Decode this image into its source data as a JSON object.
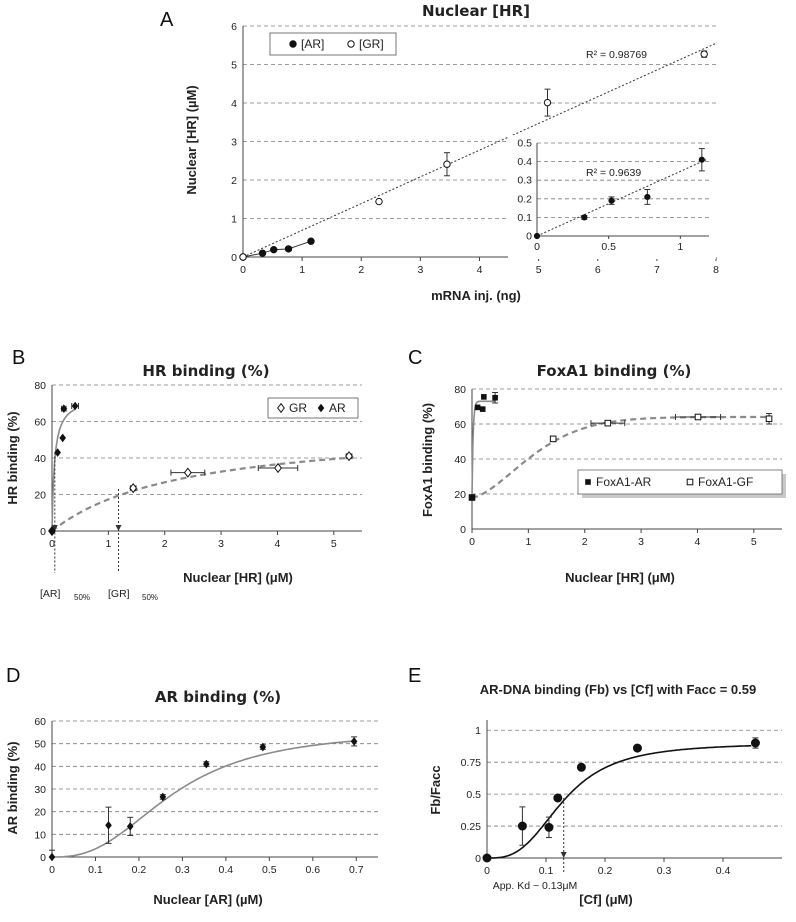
{
  "panels": {
    "A": "A",
    "B": "B",
    "C": "C",
    "D": "D",
    "E": "E"
  },
  "chart_data": [
    {
      "id": "A",
      "type": "scatter",
      "title": "Nuclear [HR]",
      "xlabel": "mRNA inj. (ng)",
      "ylabel": "Nuclear [HR] (µM)",
      "xlim": [
        0,
        8
      ],
      "ylim": [
        0,
        6
      ],
      "xticks": [
        0,
        1,
        2,
        3,
        4,
        5,
        6,
        7,
        8
      ],
      "yticks": [
        0,
        1,
        2,
        3,
        4,
        5,
        6
      ],
      "legend": [
        "[AR]",
        "[GR]"
      ],
      "series": [
        {
          "name": "[AR]",
          "marker": "filled-circle",
          "x": [
            0,
            0.33,
            0.52,
            0.77,
            1.15
          ],
          "y": [
            0,
            0.1,
            0.19,
            0.21,
            0.41
          ]
        },
        {
          "name": "[GR]",
          "marker": "open-circle",
          "x": [
            0,
            2.3,
            3.45,
            5.15,
            7.8
          ],
          "y": [
            0,
            1.44,
            2.41,
            4.01,
            5.27
          ],
          "err": [
            0,
            0,
            0.3,
            0.35,
            0.08
          ]
        }
      ],
      "r2": "R² = 0.98769",
      "inset": {
        "xlim": [
          0,
          1.2
        ],
        "ylim": [
          0,
          0.5
        ],
        "xticks": [
          "0",
          "0.5",
          "1"
        ],
        "yticks": [
          "0",
          "0.1",
          "0.2",
          "0.3",
          "0.4",
          "0.5"
        ],
        "x": [
          0,
          0.33,
          0.52,
          0.77,
          1.15
        ],
        "y": [
          0,
          0.1,
          0.19,
          0.21,
          0.41
        ],
        "err": [
          0,
          0.01,
          0.02,
          0.04,
          0.06
        ],
        "r2": "R² = 0.9639"
      }
    },
    {
      "id": "B",
      "type": "scatter",
      "title": "HR binding (%)",
      "xlabel": "Nuclear [HR] (μM)",
      "ylabel": "HR binding (%)",
      "xlim": [
        0,
        5.5
      ],
      "ylim": [
        0,
        80
      ],
      "xticks": [
        0,
        1,
        2,
        3,
        4,
        5
      ],
      "yticks": [
        0,
        20,
        40,
        60,
        80
      ],
      "legend": [
        "GR",
        "AR"
      ],
      "series": [
        {
          "name": "GR",
          "marker": "open-diamond",
          "x": [
            0,
            1.44,
            2.41,
            4.01,
            5.27
          ],
          "y": [
            0,
            23.5,
            32,
            34.5,
            41
          ],
          "xerr": [
            0,
            0.05,
            0.3,
            0.35,
            0.05
          ]
        },
        {
          "name": "AR",
          "marker": "filled-diamond",
          "x": [
            0,
            0.1,
            0.19,
            0.21,
            0.41
          ],
          "y": [
            0,
            43,
            51,
            67,
            68.5
          ],
          "xerr": [
            0,
            0.01,
            0.02,
            0.04,
            0.06
          ]
        }
      ],
      "annotations": [
        {
          "base": "[AR]",
          "sub": "50%"
        },
        {
          "base": "[GR]",
          "sub": "50%"
        }
      ]
    },
    {
      "id": "C",
      "type": "scatter",
      "title": "FoxA1 binding (%)",
      "xlabel": "Nuclear [HR] (μM)",
      "ylabel": "FoxA1 binding (%)",
      "xlim": [
        0,
        5.5
      ],
      "ylim": [
        0,
        80
      ],
      "xticks": [
        0,
        1,
        2,
        3,
        4,
        5
      ],
      "yticks": [
        0,
        20,
        40,
        60,
        80
      ],
      "legend": [
        "FoxA1-AR",
        "FoxA1-GF"
      ],
      "series": [
        {
          "name": "FoxA1-AR",
          "marker": "filled-square",
          "x": [
            0,
            0.1,
            0.19,
            0.21,
            0.41
          ],
          "y": [
            18,
            69.5,
            68.5,
            75.5,
            75
          ]
        },
        {
          "name": "FoxA1-GF",
          "marker": "open-square",
          "x": [
            0,
            1.44,
            2.41,
            4.01,
            5.27
          ],
          "y": [
            18,
            51.5,
            60.5,
            64,
            63
          ]
        }
      ]
    },
    {
      "id": "D",
      "type": "scatter",
      "title": "AR binding (%)",
      "xlabel": "Nuclear [AR] (µM)",
      "ylabel": "AR binding (%)",
      "xlim": [
        0,
        0.75
      ],
      "ylim": [
        0,
        60
      ],
      "xticks": [
        "0",
        "0.1",
        "0.2",
        "0.3",
        "0.4",
        "0.5",
        "0.6",
        "0.7"
      ],
      "yticks": [
        "0",
        "10",
        "20",
        "30",
        "40",
        "50",
        "60"
      ],
      "series": [
        {
          "name": "AR",
          "marker": "filled-diamond",
          "x": [
            0,
            0.13,
            0.18,
            0.255,
            0.355,
            0.485,
            0.695
          ],
          "y": [
            0,
            14,
            13.5,
            26.5,
            41,
            48.5,
            51
          ],
          "err": [
            3,
            8,
            4,
            1,
            1,
            1,
            2
          ]
        }
      ]
    },
    {
      "id": "E",
      "type": "scatter",
      "title": "AR-DNA binding (Fb) vs [Cf] with Facc = 0.59",
      "xlabel": "[Cf] (μM)",
      "ylabel": "Fb/Facc",
      "xlim": [
        0,
        0.5
      ],
      "ylim": [
        0,
        1.08
      ],
      "xticks": [
        "0",
        "0.1",
        "0.2",
        "0.3",
        "0.4"
      ],
      "yticks": [
        "0",
        "0.25",
        "0.5",
        "0.75",
        "1"
      ],
      "series": [
        {
          "name": "AR",
          "marker": "filled-circle",
          "x": [
            0,
            0.06,
            0.105,
            0.12,
            0.16,
            0.255,
            0.455
          ],
          "y": [
            0,
            0.25,
            0.24,
            0.47,
            0.71,
            0.86,
            0.9
          ],
          "err": [
            0,
            0.15,
            0.08,
            0.02,
            0.02,
            0.02,
            0.04
          ]
        }
      ],
      "annotation": "App. Kd ~ 0.13μM"
    }
  ]
}
